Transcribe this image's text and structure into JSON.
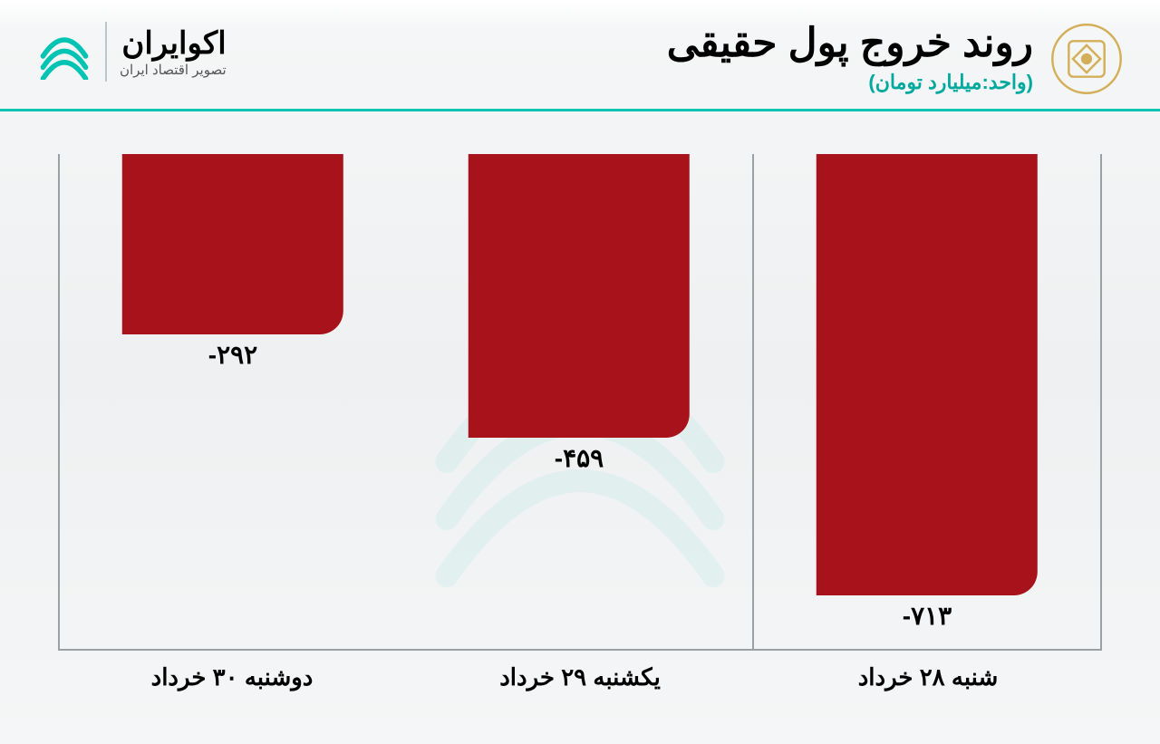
{
  "header": {
    "title": "روند خروج پول حقیقی",
    "subtitle": "(واحد:میلیارد تومان)",
    "subtitle_color": "#00a99d",
    "rule_color": "#00c4b3",
    "emblem_color": "#d4af5a"
  },
  "brand": {
    "name": "اکوایران",
    "tagline": "تصویر اقتصاد ایران",
    "glyph_color": "#00c4b3"
  },
  "chart": {
    "type": "bar",
    "orientation": "hanging",
    "axis_color": "#9aa0a4",
    "grid_color": "#9aa0a4",
    "bar_color": "#a8121a",
    "value_font_size": 28,
    "label_font_size": 26,
    "y_min": -800,
    "y_max": 0,
    "bar_width_pct": 64,
    "bar_corner_radius": 26,
    "series": [
      {
        "category": "شنبه ۲۸ خرداد",
        "value": -713,
        "display": "-۷۱۳"
      },
      {
        "category": "یکشنبه ۲۹ خرداد",
        "value": -459,
        "display": "-۴۵۹"
      },
      {
        "category": "دوشنبه ۳۰ خرداد",
        "value": -292,
        "display": "-۲۹۲"
      }
    ]
  },
  "colors": {
    "page_bg_top": "#ffffff",
    "page_bg_mid": "#eef0f1",
    "text": "#000000"
  }
}
